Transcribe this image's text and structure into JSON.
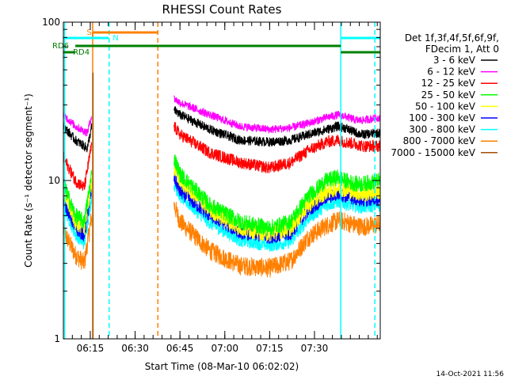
{
  "chart_data": {
    "type": "line",
    "title": "RHESSI Count Rates",
    "xlabel": "Start Time (08-Mar-10 06:02:02)",
    "ylabel": "Count Rate (s⁻¹ detector segment⁻¹)",
    "ylim": [
      1,
      100
    ],
    "yscale": "log",
    "xlim_minutes": [
      6.0,
      112.0
    ],
    "x_ticks": [
      {
        "minute": 15,
        "label": "06:15"
      },
      {
        "minute": 30,
        "label": "06:30"
      },
      {
        "minute": 45,
        "label": "06:45"
      },
      {
        "minute": 60,
        "label": "07:00"
      },
      {
        "minute": 75,
        "label": "07:15"
      },
      {
        "minute": 90,
        "label": "07:30"
      }
    ],
    "y_ticks": [
      {
        "value": 1,
        "label": "1"
      },
      {
        "value": 10,
        "label": "10"
      },
      {
        "value": 100,
        "label": "100"
      }
    ],
    "legend": {
      "placement": "right",
      "header": [
        "Det 1f,3f,4f,5f,6f,9f,",
        "FDecim 1, Att 0"
      ]
    },
    "series": [
      {
        "name": "3 - 6 keV",
        "color": "#000000",
        "x": [
          6,
          10,
          14,
          15.5,
          16,
          22,
          40,
          43,
          45,
          55,
          65,
          75,
          82,
          88,
          94,
          98,
          100,
          104,
          106,
          112
        ],
        "y": [
          22,
          18,
          16,
          22,
          null,
          null,
          null,
          28,
          26,
          21,
          18,
          17.5,
          18,
          19.5,
          21,
          22,
          21.5,
          20,
          19.5,
          20
        ],
        "noise": 0.07
      },
      {
        "name": "6 - 12 keV",
        "color": "#ff00ff",
        "x": [
          6,
          10,
          14,
          15.5,
          16,
          22,
          40,
          43,
          45,
          55,
          65,
          75,
          82,
          88,
          94,
          98,
          100,
          104,
          106,
          112
        ],
        "y": [
          26,
          22,
          20,
          26,
          null,
          null,
          null,
          33,
          31,
          26,
          22,
          21,
          21.5,
          23,
          25,
          26,
          25.5,
          24,
          24,
          25
        ],
        "noise": 0.06
      },
      {
        "name": "12 - 25 keV",
        "color": "#ff0000",
        "x": [
          6,
          10,
          13,
          15.5,
          16,
          22,
          40,
          43,
          45,
          55,
          65,
          75,
          82,
          88,
          94,
          98,
          100,
          104,
          106,
          112
        ],
        "y": [
          14,
          10,
          9,
          17,
          null,
          null,
          null,
          22,
          19.5,
          15,
          13,
          12,
          13,
          15.5,
          17.5,
          18,
          17.5,
          17,
          16.5,
          16.5
        ],
        "noise": 0.09
      },
      {
        "name": "25 - 50 keV",
        "color": "#00ff00",
        "x": [
          6,
          10,
          13,
          15.5,
          16,
          22,
          40,
          43,
          45,
          55,
          65,
          75,
          82,
          88,
          94,
          98,
          100,
          104,
          106,
          112
        ],
        "y": [
          9.5,
          6,
          5.5,
          11,
          null,
          null,
          null,
          14,
          11,
          7,
          5.5,
          5,
          5.5,
          8,
          10,
          10.5,
          10,
          9.5,
          9.5,
          10
        ],
        "noise": 0.12
      },
      {
        "name": "50 - 100 keV",
        "color": "#ffff00",
        "x": [
          6,
          10,
          13,
          15.5,
          16,
          22,
          40,
          43,
          45,
          55,
          65,
          75,
          82,
          88,
          94,
          98,
          100,
          104,
          106,
          112
        ],
        "y": [
          8.5,
          5.5,
          5,
          10,
          null,
          null,
          null,
          12,
          10,
          6.5,
          5,
          4.6,
          5,
          7,
          8.5,
          9,
          8.8,
          8.4,
          8.2,
          8.5
        ],
        "noise": 0.12
      },
      {
        "name": "100 - 300 keV",
        "color": "#0000ff",
        "x": [
          6,
          10,
          13,
          15.5,
          16,
          22,
          40,
          43,
          45,
          55,
          65,
          75,
          82,
          88,
          94,
          98,
          100,
          104,
          106,
          112
        ],
        "y": [
          7.5,
          5,
          4.5,
          9,
          null,
          null,
          null,
          10.5,
          8.5,
          6,
          4.7,
          4.4,
          4.6,
          6.5,
          7.8,
          8.2,
          8,
          7.6,
          7.5,
          7.6
        ],
        "noise": 0.1
      },
      {
        "name": "300 - 800 keV",
        "color": "#00ffff",
        "x": [
          6,
          10,
          13,
          15.5,
          16,
          22,
          40,
          43,
          45,
          55,
          65,
          75,
          82,
          88,
          94,
          98,
          100,
          104,
          106,
          112
        ],
        "y": [
          7,
          4.6,
          4,
          8,
          null,
          null,
          null,
          9.5,
          8,
          5.4,
          4.2,
          3.9,
          4.1,
          5.8,
          7,
          7.4,
          7.2,
          6.9,
          6.8,
          7
        ],
        "noise": 0.1
      },
      {
        "name": "800 - 7000 keV",
        "color": "#ff8000",
        "x": [
          6,
          10,
          13,
          15.5,
          16,
          22,
          40,
          43,
          45,
          55,
          65,
          75,
          82,
          88,
          94,
          98,
          100,
          104,
          106,
          112
        ],
        "y": [
          4.8,
          3.4,
          3,
          6,
          null,
          null,
          null,
          7,
          5.5,
          3.6,
          2.9,
          2.8,
          3.1,
          4.4,
          5.2,
          5.6,
          5.5,
          5.2,
          5.1,
          5.3
        ],
        "noise": 0.14
      },
      {
        "name": "7000 - 15000 keV",
        "color": "#a05000",
        "x": [],
        "y": [],
        "noise": 0
      }
    ],
    "flag_bars": [
      {
        "label": "S",
        "color": "#ff8000",
        "segments": [
          [
            15.8,
            37.5
          ]
        ]
      },
      {
        "label": "N",
        "color": "#00ffff",
        "segments": [
          [
            6,
            21.2
          ],
          [
            99,
            112
          ]
        ]
      },
      {
        "label": "RD6",
        "color": "#008000",
        "segments": [
          [
            10,
            98.8
          ]
        ]
      },
      {
        "label": "RD4",
        "color": "#008000",
        "segments": [
          [
            6,
            10
          ],
          [
            98.8,
            112
          ]
        ]
      }
    ],
    "vertical_markers": [
      {
        "minute": 6.4,
        "color": "#00ffff",
        "style": "solid"
      },
      {
        "minute": 21.3,
        "color": "#00ffff",
        "style": "dashed"
      },
      {
        "minute": 15.8,
        "color": "#ff8000",
        "style": "solid"
      },
      {
        "minute": 37.6,
        "color": "#ff8000",
        "style": "dashed"
      },
      {
        "minute": 98.8,
        "color": "#00ffff",
        "style": "solid"
      },
      {
        "minute": 110.2,
        "color": "#00ffff",
        "style": "dashed"
      }
    ],
    "timestamp": "14-Oct-2021 11:56"
  }
}
